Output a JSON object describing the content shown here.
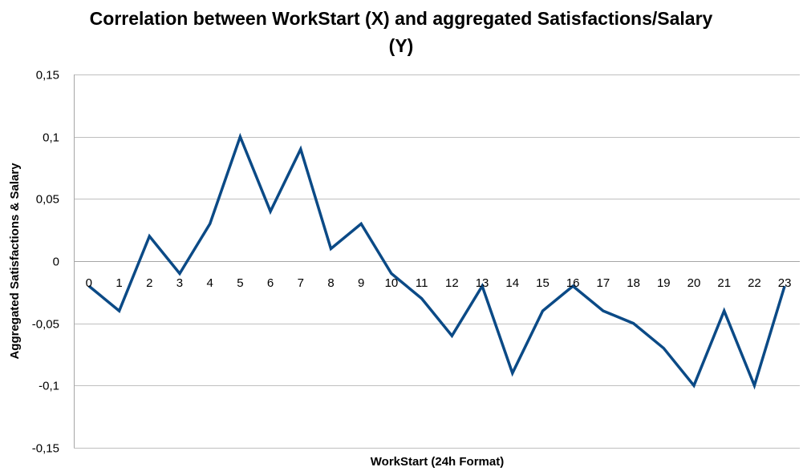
{
  "chart_data": {
    "type": "line",
    "title": "Correlation between WorkStart (X) and aggregated Satisfactions/Salary (Y)",
    "xlabel": "WorkStart (24h Format)",
    "ylabel": "Aggregated Satisfactions & Salary",
    "categories": [
      "0",
      "1",
      "2",
      "3",
      "4",
      "5",
      "6",
      "7",
      "8",
      "9",
      "10",
      "11",
      "12",
      "13",
      "14",
      "15",
      "16",
      "17",
      "18",
      "19",
      "20",
      "21",
      "22",
      "23"
    ],
    "series": [
      {
        "values": [
          -0.02,
          -0.04,
          0.02,
          -0.01,
          0.03,
          0.1,
          0.04,
          0.09,
          0.01,
          0.03,
          -0.01,
          -0.03,
          -0.06,
          -0.02,
          -0.09,
          -0.04,
          -0.02,
          -0.04,
          -0.05,
          -0.07,
          -0.1,
          -0.04,
          -0.1,
          -0.02
        ]
      }
    ],
    "ylim": [
      -0.15,
      0.15
    ],
    "yticks": [
      "0,15",
      "0,1",
      "0,05",
      "0",
      "-0,05",
      "-0,1",
      "-0,15"
    ],
    "ytick_values": [
      0.15,
      0.1,
      0.05,
      0,
      -0.05,
      -0.1,
      -0.15
    ],
    "grid": true,
    "legend": "none",
    "colors": {
      "line": "#0B4A86",
      "grid": "#BFBFBF",
      "axis": "#A6A6A6"
    }
  }
}
